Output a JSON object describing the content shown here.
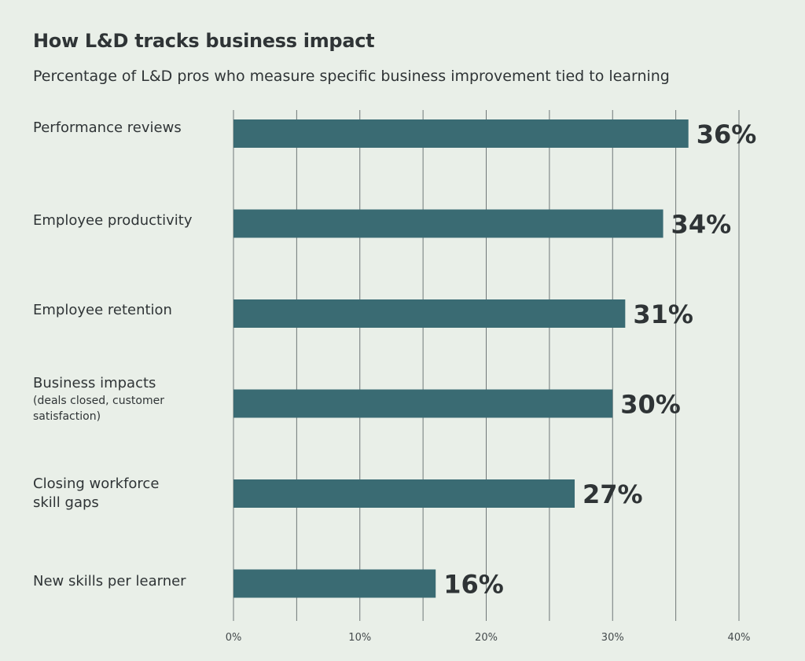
{
  "chart_data": {
    "type": "bar",
    "orientation": "horizontal",
    "title": "How L&D tracks business impact",
    "subtitle": "Percentage of L&D pros who measure specific business improvement tied to learning",
    "categories": [
      {
        "label": "Performance reviews",
        "sublabel": ""
      },
      {
        "label": "Employee productivity",
        "sublabel": ""
      },
      {
        "label": "Employee retention",
        "sublabel": ""
      },
      {
        "label": "Business impacts",
        "sublabel": "(deals closed, customer satisfaction)"
      },
      {
        "label": "Closing workforce skill gaps",
        "sublabel": ""
      },
      {
        "label": "New skills per learner",
        "sublabel": ""
      }
    ],
    "values": [
      36,
      34,
      31,
      30,
      27,
      16
    ],
    "value_labels": [
      "36%",
      "34%",
      "31%",
      "30%",
      "27%",
      "16%"
    ],
    "xlim": [
      0,
      40
    ],
    "xticks": [
      0,
      10,
      20,
      30,
      40
    ],
    "xtick_labels": [
      "0%",
      "10%",
      "20%",
      "30%",
      "40%"
    ],
    "grid": true,
    "bar_color": "#3a6b73"
  }
}
